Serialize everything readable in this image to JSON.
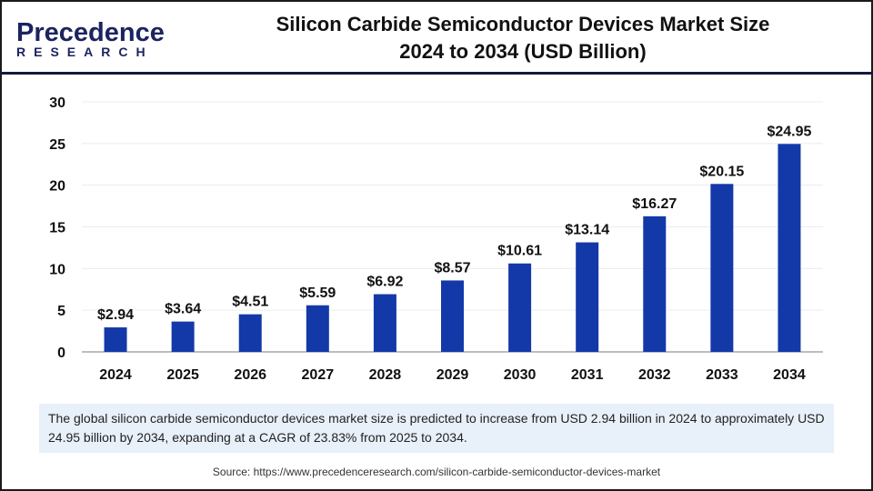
{
  "logo": {
    "line1": "Precedence",
    "line2": "RESEARCH"
  },
  "title": {
    "line1": "Silicon Carbide Semiconductor Devices Market Size",
    "line2": "2024 to 2034 (USD Billion)"
  },
  "chart_data": {
    "type": "bar",
    "categories": [
      "2024",
      "2025",
      "2026",
      "2027",
      "2028",
      "2029",
      "2030",
      "2031",
      "2032",
      "2033",
      "2034"
    ],
    "values": [
      2.94,
      3.64,
      4.51,
      5.59,
      6.92,
      8.57,
      10.61,
      13.14,
      16.27,
      20.15,
      24.95
    ],
    "data_labels": [
      "$2.94",
      "$3.64",
      "$4.51",
      "$5.59",
      "$6.92",
      "$8.57",
      "$10.61",
      "$13.14",
      "$16.27",
      "$20.15",
      "$24.95"
    ],
    "ylim": [
      0,
      30
    ],
    "yticks": [
      0,
      5,
      10,
      15,
      20,
      25,
      30
    ],
    "grid": true,
    "bar_color": "#1339a9"
  },
  "note": "The global silicon carbide semiconductor devices market size is predicted to increase from USD 2.94 billion in 2024 to approximately USD 24.95 billion by 2034, expanding at a CAGR of 23.83% from 2025 to 2034.",
  "source": "Source: https://www.precedenceresearch.com/silicon-carbide-semiconductor-devices-market"
}
